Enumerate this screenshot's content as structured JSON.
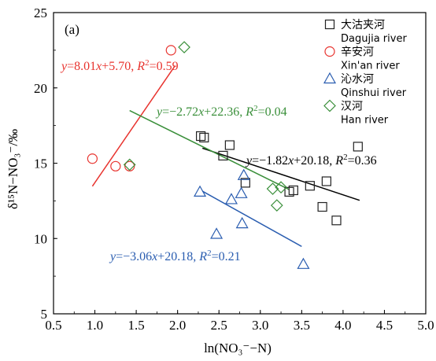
{
  "chart_data": {
    "type": "scatter",
    "panel_label": "(a)",
    "xlabel": "ln(NO₃⁻−N)",
    "ylabel": "δ¹⁵N−NO₃⁻/‰",
    "xlim": [
      0.5,
      5.0
    ],
    "ylim": [
      5,
      25
    ],
    "x_ticks": [
      "0.5",
      "1.0",
      "1.5",
      "2.0",
      "2.5",
      "3.0",
      "3.5",
      "4.0",
      "4.5",
      "5.0"
    ],
    "y_ticks": [
      "5",
      "10",
      "15",
      "20",
      "25"
    ],
    "grid": false,
    "legend_position": "top-right",
    "series": [
      {
        "name_cn": "大沽夹河",
        "name_en": "Dagujia river",
        "marker": "square",
        "color": "#222222",
        "points": [
          [
            2.28,
            16.8
          ],
          [
            2.32,
            16.7
          ],
          [
            2.55,
            15.5
          ],
          [
            2.63,
            16.2
          ],
          [
            2.82,
            13.7
          ],
          [
            3.35,
            13.1
          ],
          [
            3.4,
            13.2
          ],
          [
            3.6,
            13.5
          ],
          [
            3.75,
            12.1
          ],
          [
            3.8,
            13.8
          ],
          [
            3.92,
            11.2
          ],
          [
            4.18,
            16.1
          ]
        ],
        "fit": {
          "label": "y=−1.82x+20.18, R²=0.36",
          "color": "#000000",
          "x_range": [
            2.3,
            4.2
          ]
        }
      },
      {
        "name_cn": "辛安河",
        "name_en": "Xin'an river",
        "marker": "circle",
        "color": "#e8332e",
        "points": [
          [
            0.97,
            15.3
          ],
          [
            1.25,
            14.8
          ],
          [
            1.42,
            14.8
          ],
          [
            1.92,
            22.5
          ]
        ],
        "fit": {
          "label": "y=8.01x+5.70, R²=0.59",
          "color": "#e8332e",
          "x_range": [
            0.97,
            1.97
          ]
        }
      },
      {
        "name_cn": "沁水河",
        "name_en": "Qinshui river",
        "marker": "triangle",
        "color": "#2a5db0",
        "points": [
          [
            2.27,
            13.1
          ],
          [
            2.47,
            10.3
          ],
          [
            2.65,
            12.6
          ],
          [
            2.77,
            13.0
          ],
          [
            2.78,
            11.0
          ],
          [
            2.8,
            14.2
          ],
          [
            3.52,
            8.3
          ]
        ],
        "fit": {
          "label": "y=−3.06x+20.18, R²=0.21",
          "color": "#2a5db0",
          "x_range": [
            2.3,
            3.5
          ]
        }
      },
      {
        "name_cn": "汉河",
        "name_en": "Han river",
        "marker": "diamond",
        "color": "#3a8f3a",
        "points": [
          [
            1.42,
            14.9
          ],
          [
            2.08,
            22.7
          ],
          [
            3.15,
            13.3
          ],
          [
            3.2,
            12.2
          ],
          [
            3.25,
            13.4
          ]
        ],
        "fit": {
          "label": "y=−2.72x+22.36, R²=0.04",
          "color": "#3a8f3a",
          "x_range": [
            1.42,
            3.35
          ]
        }
      }
    ]
  }
}
